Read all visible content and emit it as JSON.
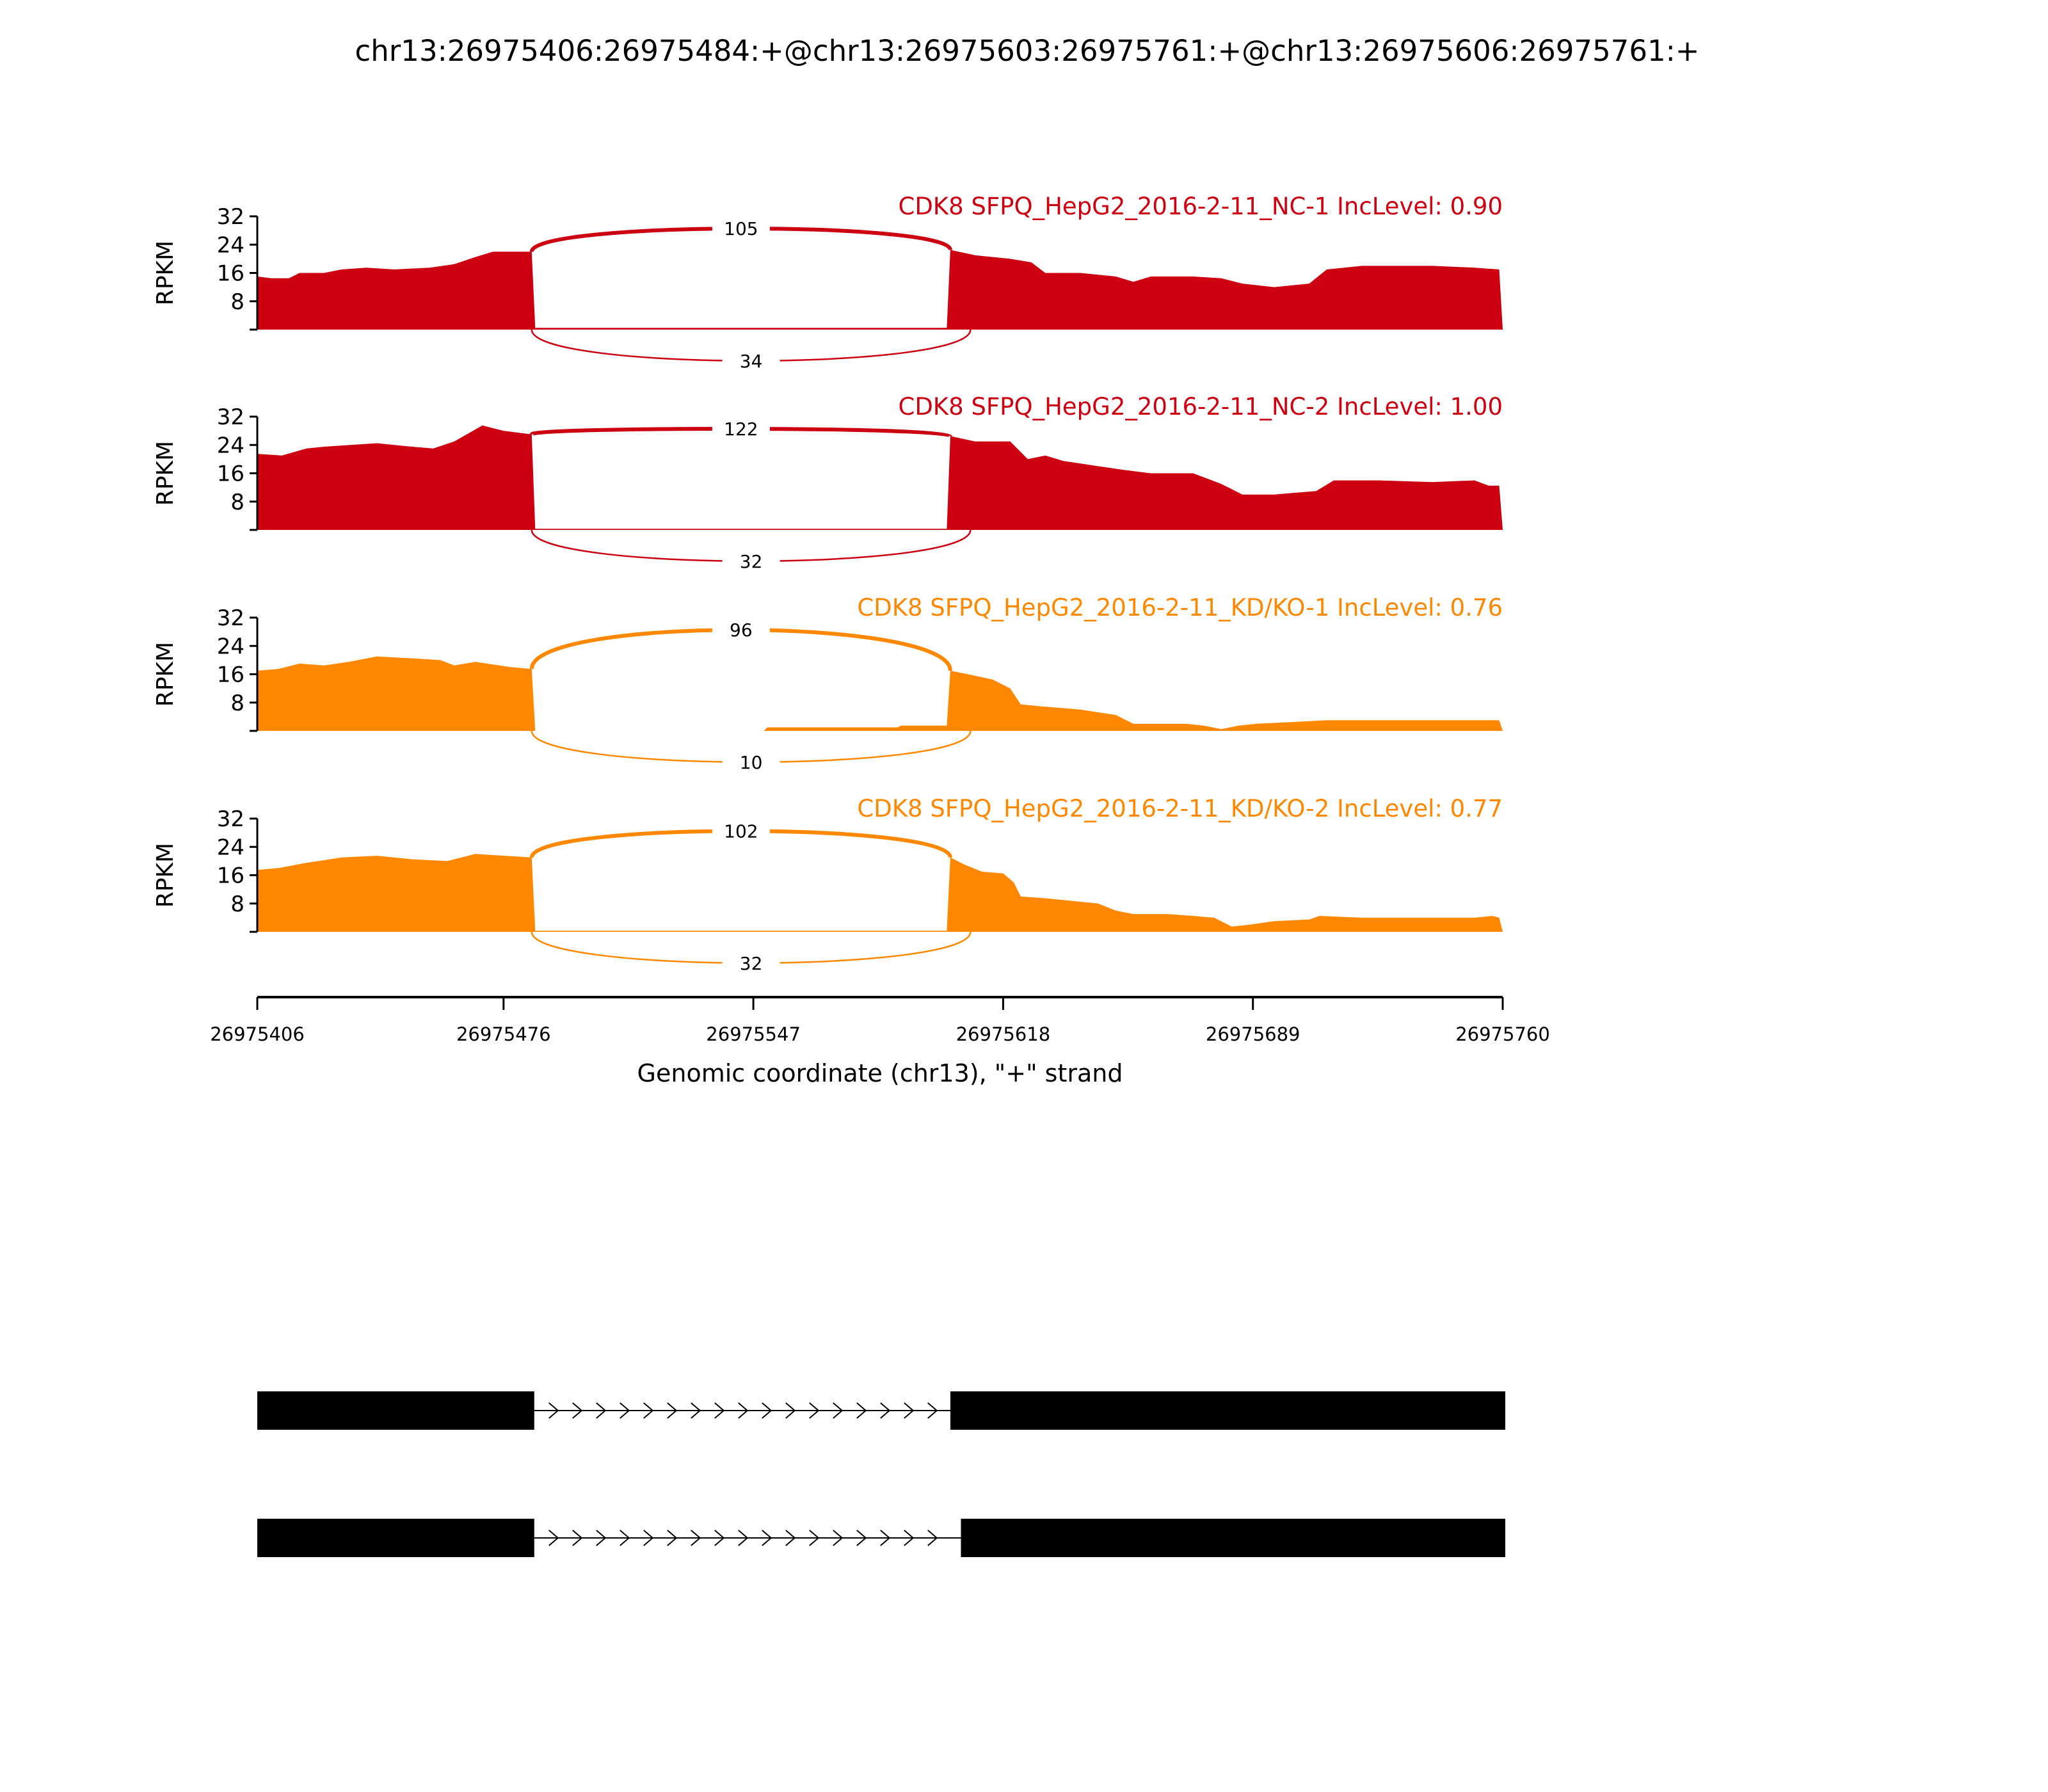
{
  "chart_data": {
    "type": "area",
    "title": "chr13:26975406:26975484:+@chr13:26975603:26975761:+@chr13:26975606:26975761:+",
    "xlabel": "Genomic coordinate (chr13), \"+\" strand",
    "ylabel": "RPKM",
    "xlim": [
      26975406,
      26975760
    ],
    "ylim": [
      0,
      32
    ],
    "yticks": [
      "8",
      "16",
      "24",
      "32"
    ],
    "xticks": [
      "26975406",
      "26975476",
      "26975547",
      "26975618",
      "26975689",
      "26975760"
    ],
    "xtick_values": [
      26975406,
      26975476,
      26975547,
      26975618,
      26975689,
      26975760
    ],
    "exon1_end": 26975484,
    "exon2_start": 26975603,
    "exon2_alt_start": 26975606,
    "samples": [
      {
        "label": "CDK8 SFPQ_HepG2_2016-2-11_NC-1 IncLevel: 0.90",
        "color": "#cc0011",
        "coverage": [
          [
            26975406,
            15
          ],
          [
            26975410,
            14.5
          ],
          [
            26975415,
            14.5
          ],
          [
            26975418,
            16
          ],
          [
            26975425,
            16
          ],
          [
            26975430,
            17
          ],
          [
            26975437,
            17.5
          ],
          [
            26975445,
            17
          ],
          [
            26975455,
            17.5
          ],
          [
            26975462,
            18.5
          ],
          [
            26975468,
            20.5
          ],
          [
            26975473,
            22
          ],
          [
            26975484,
            22
          ],
          [
            26975485,
            0.5
          ],
          [
            26975602,
            0.5
          ],
          [
            26975603,
            22.5
          ],
          [
            26975610,
            21
          ],
          [
            26975620,
            20
          ],
          [
            26975626,
            19
          ],
          [
            26975630,
            16
          ],
          [
            26975640,
            16
          ],
          [
            26975650,
            15
          ],
          [
            26975655,
            13.5
          ],
          [
            26975660,
            15
          ],
          [
            26975672,
            15
          ],
          [
            26975680,
            14.5
          ],
          [
            26975686,
            13
          ],
          [
            26975695,
            12
          ],
          [
            26975705,
            13
          ],
          [
            26975710,
            17
          ],
          [
            26975720,
            18
          ],
          [
            26975740,
            18
          ],
          [
            26975752,
            17.5
          ],
          [
            26975759,
            17
          ]
        ],
        "inclusion_junction_count": "105",
        "skipping_junction_count": "34"
      },
      {
        "label": "CDK8 SFPQ_HepG2_2016-2-11_NC-2 IncLevel: 1.00",
        "color": "#cc0011",
        "coverage": [
          [
            26975406,
            21.5
          ],
          [
            26975413,
            21
          ],
          [
            26975420,
            23
          ],
          [
            26975425,
            23.5
          ],
          [
            26975440,
            24.5
          ],
          [
            26975450,
            23.5
          ],
          [
            26975456,
            23
          ],
          [
            26975462,
            25
          ],
          [
            26975470,
            29.5
          ],
          [
            26975476,
            28
          ],
          [
            26975484,
            27
          ],
          [
            26975485,
            0.3
          ],
          [
            26975602,
            0.3
          ],
          [
            26975603,
            26.5
          ],
          [
            26975610,
            25
          ],
          [
            26975620,
            25
          ],
          [
            26975625,
            20
          ],
          [
            26975630,
            21
          ],
          [
            26975635,
            19.5
          ],
          [
            26975645,
            18
          ],
          [
            26975652,
            17
          ],
          [
            26975660,
            16
          ],
          [
            26975672,
            16
          ],
          [
            26975680,
            13
          ],
          [
            26975686,
            10
          ],
          [
            26975695,
            10
          ],
          [
            26975707,
            11
          ],
          [
            26975712,
            14
          ],
          [
            26975725,
            14
          ],
          [
            26975740,
            13.5
          ],
          [
            26975752,
            14
          ],
          [
            26975756,
            12.5
          ],
          [
            26975759,
            12.5
          ]
        ],
        "inclusion_junction_count": "122",
        "skipping_junction_count": "32"
      },
      {
        "label": "CDK8 SFPQ_HepG2_2016-2-11_KD/KO-1 IncLevel: 0.76",
        "color": "#ff8800",
        "coverage": [
          [
            26975406,
            17
          ],
          [
            26975412,
            17.5
          ],
          [
            26975418,
            19
          ],
          [
            26975425,
            18.5
          ],
          [
            26975432,
            19.5
          ],
          [
            26975440,
            21
          ],
          [
            26975450,
            20.5
          ],
          [
            26975458,
            20
          ],
          [
            26975462,
            18.5
          ],
          [
            26975468,
            19.5
          ],
          [
            26975478,
            18
          ],
          [
            26975484,
            17.5
          ],
          [
            26975485,
            0
          ],
          [
            26975550,
            0
          ],
          [
            26975551,
            1
          ],
          [
            26975588,
            1
          ],
          [
            26975589,
            1.5
          ],
          [
            26975602,
            1.5
          ],
          [
            26975603,
            17
          ],
          [
            26975608,
            16
          ],
          [
            26975615,
            14.5
          ],
          [
            26975620,
            12
          ],
          [
            26975623,
            7.5
          ],
          [
            26975628,
            7
          ],
          [
            26975640,
            6
          ],
          [
            26975650,
            4.5
          ],
          [
            26975655,
            2
          ],
          [
            26975670,
            2
          ],
          [
            26975675,
            1.5
          ],
          [
            26975680,
            0.5
          ],
          [
            26975685,
            1.5
          ],
          [
            26975690,
            2
          ],
          [
            26975700,
            2.5
          ],
          [
            26975710,
            3
          ],
          [
            26975759,
            3
          ]
        ],
        "inclusion_junction_count": "96",
        "skipping_junction_count": "10"
      },
      {
        "label": "CDK8 SFPQ_HepG2_2016-2-11_KD/KO-2 IncLevel: 0.77",
        "color": "#ff8800",
        "coverage": [
          [
            26975406,
            17.5
          ],
          [
            26975412,
            18
          ],
          [
            26975420,
            19.5
          ],
          [
            26975430,
            21
          ],
          [
            26975440,
            21.5
          ],
          [
            26975450,
            20.5
          ],
          [
            26975460,
            20
          ],
          [
            26975468,
            22
          ],
          [
            26975484,
            21
          ],
          [
            26975485,
            0.3
          ],
          [
            26975602,
            0.3
          ],
          [
            26975603,
            21
          ],
          [
            26975607,
            19
          ],
          [
            26975612,
            17
          ],
          [
            26975618,
            16.5
          ],
          [
            26975621,
            14
          ],
          [
            26975623,
            10
          ],
          [
            26975630,
            9.5
          ],
          [
            26975640,
            8.5
          ],
          [
            26975645,
            8
          ],
          [
            26975650,
            6
          ],
          [
            26975655,
            5
          ],
          [
            26975665,
            5
          ],
          [
            26975672,
            4.5
          ],
          [
            26975678,
            4
          ],
          [
            26975683,
            1.5
          ],
          [
            26975688,
            2
          ],
          [
            26975695,
            3
          ],
          [
            26975705,
            3.5
          ],
          [
            26975708,
            4.5
          ],
          [
            26975720,
            4
          ],
          [
            26975752,
            4
          ],
          [
            26975757,
            4.5
          ],
          [
            26975759,
            4
          ]
        ],
        "inclusion_junction_count": "102",
        "skipping_junction_count": "32"
      }
    ],
    "gene_models": [
      {
        "exons": [
          [
            26975406,
            26975484
          ],
          [
            26975603,
            26975761
          ]
        ]
      },
      {
        "exons": [
          [
            26975406,
            26975484
          ],
          [
            26975606,
            26975761
          ]
        ]
      }
    ]
  }
}
